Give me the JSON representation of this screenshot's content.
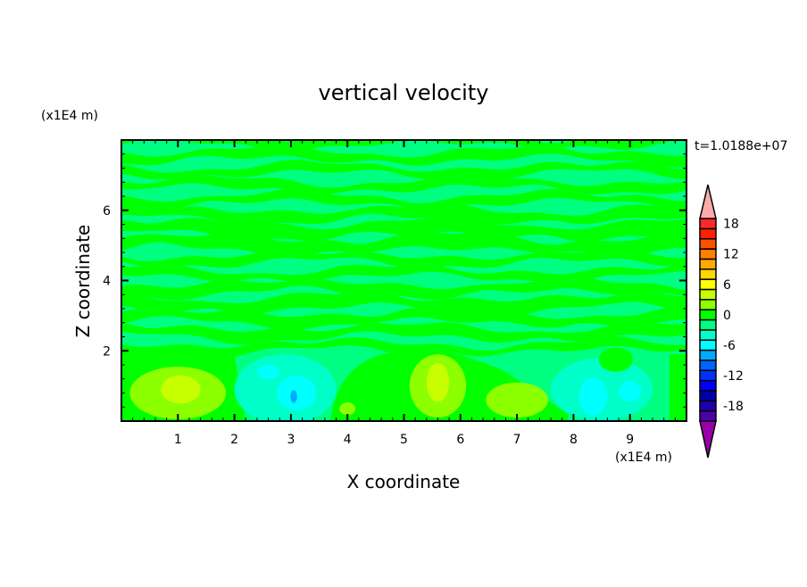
{
  "chart_data": {
    "type": "heatmap",
    "title": "vertical velocity",
    "xlabel": "X coordinate",
    "ylabel": "Z coordinate",
    "x_unit": "(x1E4 m)",
    "y_unit": "(x1E4 m)",
    "time_label": "t=1.0188e+07",
    "xlim": [
      0,
      10
    ],
    "ylim": [
      0,
      8
    ],
    "x_ticks": [
      1,
      2,
      3,
      4,
      5,
      6,
      7,
      8,
      9
    ],
    "y_ticks": [
      2,
      4,
      6
    ],
    "background_color": "#00ff80",
    "colorbar": {
      "levels": [
        -20,
        -18,
        -16,
        -14,
        -12,
        -10,
        -8,
        -6,
        -4,
        -2,
        0,
        2,
        4,
        6,
        8,
        10,
        12,
        14,
        16,
        18,
        20
      ],
      "colors": [
        "#5000aa",
        "#1e00aa",
        "#0000aa",
        "#0000ff",
        "#0032ff",
        "#0064ff",
        "#00aaff",
        "#00ffff",
        "#00ffc8",
        "#00ff80",
        "#00ff00",
        "#8cff00",
        "#c8ff00",
        "#ffff00",
        "#ffd700",
        "#ffaa00",
        "#ff7f00",
        "#ff5000",
        "#ff2000",
        "#ff2828"
      ],
      "over_color": "#ffaaaa",
      "under_color": "#9900aa",
      "tick_labels": [
        "18",
        "12",
        "6",
        "0",
        "-6",
        "-12",
        "-18"
      ],
      "tick_values": [
        18,
        12,
        6,
        0,
        -6,
        -12,
        -18
      ]
    },
    "features": [
      {
        "x": 1.0,
        "z": 0.8,
        "rx": 0.85,
        "rz": 0.75,
        "color": "#8cff00"
      },
      {
        "x": 1.05,
        "z": 0.9,
        "rx": 0.35,
        "rz": 0.4,
        "color": "#c8ff00"
      },
      {
        "x": 2.9,
        "z": 0.9,
        "rx": 0.9,
        "rz": 1.0,
        "color": "#00ffc8"
      },
      {
        "x": 3.1,
        "z": 0.8,
        "rx": 0.35,
        "rz": 0.5,
        "color": "#00ffff"
      },
      {
        "x": 2.6,
        "z": 1.4,
        "rx": 0.2,
        "rz": 0.2,
        "color": "#00ffff"
      },
      {
        "x": 3.05,
        "z": 0.7,
        "rx": 0.06,
        "rz": 0.18,
        "color": "#00aaff"
      },
      {
        "x": 4.0,
        "z": 0.35,
        "rx": 0.14,
        "rz": 0.18,
        "color": "#8cff00"
      },
      {
        "x": 5.6,
        "z": 1.0,
        "rx": 0.5,
        "rz": 0.9,
        "color": "#8cff00"
      },
      {
        "x": 5.6,
        "z": 1.1,
        "rx": 0.2,
        "rz": 0.55,
        "color": "#c8ff00"
      },
      {
        "x": 7.0,
        "z": 0.6,
        "rx": 0.55,
        "rz": 0.5,
        "color": "#8cff00"
      },
      {
        "x": 8.5,
        "z": 0.9,
        "rx": 0.9,
        "rz": 0.9,
        "color": "#00ffc8"
      },
      {
        "x": 8.35,
        "z": 0.7,
        "rx": 0.25,
        "rz": 0.55,
        "color": "#00ffff"
      },
      {
        "x": 9.0,
        "z": 0.85,
        "rx": 0.2,
        "rz": 0.3,
        "color": "#00ffff"
      },
      {
        "x": 8.75,
        "z": 1.75,
        "rx": 0.3,
        "rz": 0.35,
        "color": "#00ff00"
      }
    ]
  }
}
